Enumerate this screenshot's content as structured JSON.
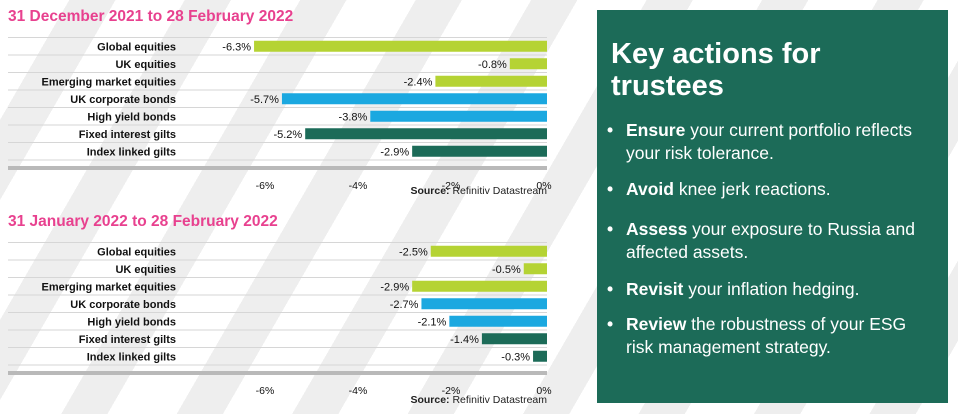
{
  "colors": {
    "title_pink": "#e8418f",
    "lime": "#b5d334",
    "blue": "#1ba8e0",
    "dark_green": "#1c6b58",
    "panel_bg": "#1c6b58"
  },
  "chart_data": [
    {
      "type": "bar",
      "orientation": "horizontal",
      "title": "31 December 2021 to 28 February 2022",
      "categories": [
        "Global equities",
        "UK equities",
        "Emerging market equities",
        "UK corporate bonds",
        "High yield bonds",
        "Fixed interest gilts",
        "Index linked gilts"
      ],
      "values": [
        -6.3,
        -0.8,
        -2.4,
        -5.7,
        -3.8,
        -5.2,
        -2.9
      ],
      "value_labels": [
        "-6.3%",
        "-0.8%",
        "-2.4%",
        "-5.7%",
        "-3.8%",
        "-5.2%",
        "-2.9%"
      ],
      "bar_colors": [
        "#b5d334",
        "#b5d334",
        "#b5d334",
        "#1ba8e0",
        "#1ba8e0",
        "#1c6b58",
        "#1c6b58"
      ],
      "xlim": [
        -7,
        0
      ],
      "xticks": [
        -6,
        -4,
        -2,
        0
      ],
      "xtick_labels": [
        "-6%",
        "-4%",
        "-2%",
        "0%"
      ],
      "grid": "horizontal lines between rows",
      "source_label": "Source:",
      "source_value": "Refinitiv Datastream"
    },
    {
      "type": "bar",
      "orientation": "horizontal",
      "title": "31 January 2022 to 28 February 2022",
      "categories": [
        "Global equities",
        "UK equities",
        "Emerging market equities",
        "UK corporate bonds",
        "High yield bonds",
        "Fixed interest gilts",
        "Index linked gilts"
      ],
      "values": [
        -2.5,
        -0.5,
        -2.9,
        -2.7,
        -2.1,
        -1.4,
        -0.3
      ],
      "value_labels": [
        "-2.5%",
        "-0.5%",
        "-2.9%",
        "-2.7%",
        "-2.1%",
        "-1.4%",
        "-0.3%"
      ],
      "bar_colors": [
        "#b5d334",
        "#b5d334",
        "#b5d334",
        "#1ba8e0",
        "#1ba8e0",
        "#1c6b58",
        "#1c6b58"
      ],
      "xlim": [
        -7,
        0
      ],
      "xticks": [
        -6,
        -4,
        -2,
        0
      ],
      "xtick_labels": [
        "-6%",
        "-4%",
        "-2%",
        "0%"
      ],
      "grid": "horizontal lines between rows",
      "source_label": "Source:",
      "source_value": "Refinitiv Datastream"
    }
  ],
  "panel": {
    "title": "Key actions for trustees",
    "actions": [
      {
        "bold": "Ensure",
        "rest": " your current portfolio reflects your risk tolerance."
      },
      {
        "bold": "Avoid",
        "rest": " knee jerk reactions."
      },
      {
        "bold": "Assess",
        "rest": " your exposure to Russia and affected assets."
      },
      {
        "bold": "Revisit",
        "rest": " your inflation hedging."
      },
      {
        "bold": "Review",
        "rest": " the robustness of your ESG risk management strategy."
      }
    ]
  }
}
